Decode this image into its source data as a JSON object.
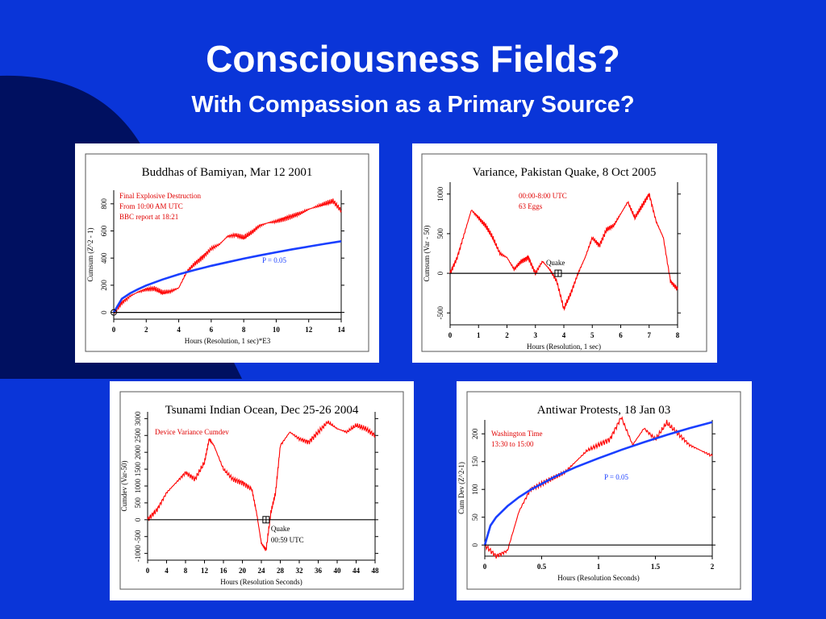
{
  "slide": {
    "title": "Consciousness Fields?",
    "subtitle": "With Compassion as a Primary Source?",
    "background_color": "#0a35d8"
  },
  "chart_data": [
    {
      "type": "line",
      "title": "Buddhas of Bamiyan, Mar 12 2001",
      "xlabel": "Hours (Resolution, 1 sec)*E3",
      "ylabel": "Cumsum (Z^2 - 1)",
      "xlim": [
        0,
        14
      ],
      "ylim": [
        -50,
        900
      ],
      "xticks": [
        0,
        2,
        4,
        6,
        8,
        10,
        12,
        14
      ],
      "yticks": [
        0,
        200,
        400,
        600,
        800
      ],
      "annotations": [
        "Final Explosive Destruction",
        "From 10:00 AM UTC",
        "BBC report at 18:21"
      ],
      "reference_label": "P = 0.05",
      "series": [
        {
          "name": "",
          "color": "#ff0000",
          "x": [
            0,
            0.5,
            1,
            1.5,
            2,
            2.5,
            3,
            3.5,
            4,
            4.5,
            5,
            5.5,
            6,
            6.5,
            7,
            7.5,
            8,
            8.5,
            9,
            9.5,
            10,
            10.5,
            11,
            11.5,
            12,
            12.5,
            13,
            13.5,
            14
          ],
          "y": [
            0,
            70,
            120,
            150,
            170,
            175,
            145,
            155,
            180,
            300,
            360,
            410,
            470,
            500,
            560,
            570,
            550,
            590,
            640,
            660,
            670,
            690,
            710,
            730,
            760,
            780,
            800,
            820,
            750
          ]
        },
        {
          "name": "",
          "color": "#1a3fff",
          "x": [
            0,
            0.5,
            1,
            1.5,
            2,
            3,
            4,
            5,
            6,
            7,
            8,
            9,
            10,
            11,
            12,
            13,
            14
          ],
          "y": [
            0,
            100,
            140,
            171,
            198,
            242,
            280,
            313,
            343,
            370,
            396,
            420,
            443,
            465,
            485,
            505,
            524
          ]
        },
        {
          "name": "",
          "color": "#000000",
          "x": [
            0,
            14
          ],
          "y": [
            0,
            0
          ]
        }
      ]
    },
    {
      "type": "line",
      "title": "Variance, Pakistan Quake, 8 Oct 2005",
      "xlabel": "Hours (Resolution, 1 sec)",
      "ylabel": "Cumsum (Var - 50)",
      "xlim": [
        0,
        8
      ],
      "ylim": [
        -650,
        1150
      ],
      "xticks": [
        0,
        1,
        2,
        3,
        4,
        5,
        6,
        7,
        8
      ],
      "yticks": [
        -500,
        0,
        500,
        1000
      ],
      "annotations": [
        "00:00-8:00 UTC",
        "63 Eggs"
      ],
      "marker": {
        "label": "Quake",
        "x": 3.8,
        "y": 0
      },
      "series": [
        {
          "name": "",
          "color": "#ff0000",
          "x": [
            0,
            0.25,
            0.5,
            0.75,
            1,
            1.25,
            1.5,
            1.75,
            2,
            2.25,
            2.5,
            2.75,
            3,
            3.25,
            3.5,
            3.75,
            4,
            4.25,
            4.5,
            4.75,
            5,
            5.25,
            5.5,
            5.75,
            6,
            6.25,
            6.5,
            6.75,
            7,
            7.25,
            7.5,
            7.75,
            8
          ],
          "y": [
            0,
            200,
            500,
            800,
            700,
            600,
            450,
            250,
            200,
            50,
            150,
            200,
            0,
            150,
            50,
            -100,
            -450,
            -250,
            0,
            200,
            450,
            350,
            550,
            600,
            750,
            900,
            700,
            850,
            1000,
            650,
            450,
            -100,
            -200
          ]
        },
        {
          "name": "",
          "color": "#000000",
          "x": [
            0,
            8
          ],
          "y": [
            0,
            0
          ]
        }
      ]
    },
    {
      "type": "line",
      "title": "Tsunami Indian Ocean, Dec 25-26 2004",
      "xlabel": "Hours (Resolution Seconds)",
      "ylabel": "Cumdev (Var-50)",
      "xlim": [
        0,
        48
      ],
      "ylim": [
        -1200,
        3200
      ],
      "xticks": [
        0,
        4,
        8,
        12,
        16,
        20,
        24,
        28,
        32,
        36,
        40,
        44,
        48
      ],
      "yticks": [
        -1000,
        -500,
        0,
        500,
        1000,
        1500,
        2000,
        2500,
        3000
      ],
      "annotations": [
        "Device Variance Cumdev"
      ],
      "marker": {
        "label": "Quake",
        "label2": "00:59 UTC",
        "x": 25,
        "y": 0
      },
      "series": [
        {
          "name": "",
          "color": "#ff0000",
          "x": [
            0,
            2,
            4,
            6,
            8,
            10,
            12,
            13,
            14,
            16,
            18,
            20,
            22,
            23,
            24,
            25,
            26,
            27,
            28,
            30,
            32,
            34,
            36,
            38,
            40,
            42,
            44,
            46,
            48
          ],
          "y": [
            0,
            300,
            800,
            1100,
            1400,
            1200,
            1700,
            2400,
            2200,
            1500,
            1200,
            1100,
            900,
            200,
            -700,
            -900,
            200,
            800,
            2200,
            2600,
            2400,
            2300,
            2600,
            2900,
            2700,
            2600,
            2800,
            2700,
            2500
          ]
        },
        {
          "name": "",
          "color": "#000000",
          "x": [
            0,
            48
          ],
          "y": [
            0,
            0
          ]
        }
      ]
    },
    {
      "type": "line",
      "title": "Antiwar Protests, 18 Jan 03",
      "xlabel": "Hours (Resolution Seconds)",
      "ylabel": "Cum Dev (Z^2-1)",
      "xlim": [
        0,
        2
      ],
      "ylim": [
        -20,
        225
      ],
      "xticks": [
        0,
        0.5,
        1,
        1.5,
        2
      ],
      "xtick_labels": [
        "0",
        "0.5",
        "1",
        "1.5",
        "2"
      ],
      "yticks": [
        0,
        50,
        100,
        150,
        200
      ],
      "annotations": [
        "Washington Time",
        "13:30 to 15:00"
      ],
      "reference_label": "P = 0.05",
      "series": [
        {
          "name": "",
          "color": "#ff0000",
          "x": [
            0,
            0.1,
            0.2,
            0.3,
            0.4,
            0.5,
            0.6,
            0.7,
            0.8,
            0.9,
            1.0,
            1.1,
            1.2,
            1.3,
            1.4,
            1.5,
            1.6,
            1.7,
            1.8,
            1.9,
            2.0
          ],
          "y": [
            0,
            -20,
            -10,
            60,
            100,
            110,
            120,
            130,
            150,
            170,
            180,
            190,
            230,
            180,
            210,
            190,
            220,
            200,
            180,
            170,
            160
          ]
        },
        {
          "name": "",
          "color": "#1a3fff",
          "x": [
            0,
            0.05,
            0.1,
            0.2,
            0.3,
            0.4,
            0.5,
            0.6,
            0.7,
            0.8,
            0.9,
            1.0,
            1.2,
            1.4,
            1.6,
            1.8,
            2.0
          ],
          "y": [
            0,
            35,
            50,
            70,
            86,
            99,
            110,
            121,
            131,
            140,
            148,
            156,
            171,
            185,
            198,
            210,
            221
          ]
        },
        {
          "name": "",
          "color": "#000000",
          "x": [
            0,
            2
          ],
          "y": [
            0,
            0
          ]
        }
      ]
    }
  ]
}
